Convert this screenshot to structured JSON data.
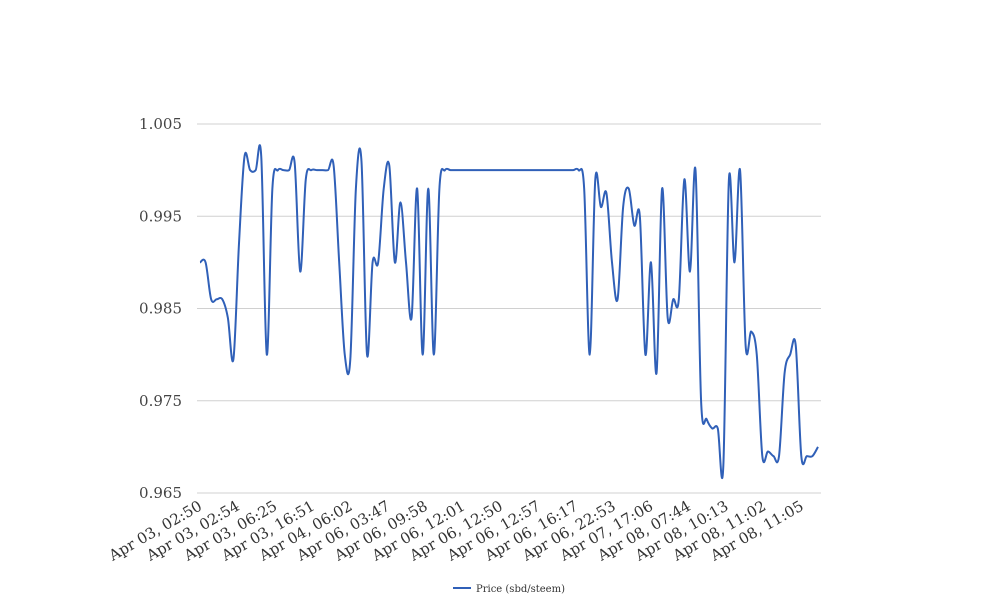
{
  "chart_data": {
    "type": "line",
    "title": "",
    "xlabel": "",
    "ylabel": "",
    "ylim": [
      0.965,
      1.005
    ],
    "y_ticks": [
      "0.965",
      "0.975",
      "0.985",
      "0.995",
      "1.005"
    ],
    "y_tick_values": [
      0.965,
      0.975,
      0.985,
      0.995,
      1.005
    ],
    "x_tick_labels": [
      "Apr 03, 02:50",
      "Apr 03, 02:54",
      "Apr 03, 06:25",
      "Apr 03, 16:51",
      "Apr 04, 06:02",
      "Apr 06, 03:47",
      "Apr 06, 09:58",
      "Apr 06, 12:01",
      "Apr 06, 12:50",
      "Apr 06, 12:57",
      "Apr 06, 16:17",
      "Apr 06, 22:53",
      "Apr 07, 17:06",
      "Apr 08, 07:44",
      "Apr 08, 10:13",
      "Apr 08, 11:02",
      "Apr 08, 11:05"
    ],
    "grid": true,
    "legend_position": "bottom",
    "series": [
      {
        "name": "Price (sbd/steem)",
        "color": "#3060b8",
        "values": [
          0.99,
          0.99,
          0.986,
          0.986,
          0.986,
          0.984,
          0.9795,
          0.992,
          1.0015,
          1.0,
          1.0,
          1.0015,
          0.98,
          0.998,
          1.0,
          1.0,
          1.0,
          1.0008,
          0.989,
          0.999,
          1.0,
          1.0,
          1.0,
          1.0,
          1.0005,
          0.99,
          0.98,
          0.9795,
          0.998,
          1.001,
          0.98,
          0.99,
          0.99,
          0.998,
          1.0005,
          0.99,
          0.9965,
          0.99,
          0.984,
          0.998,
          0.98,
          0.998,
          0.98,
          0.998,
          1.0,
          1.0,
          1.0,
          1.0,
          1.0,
          1.0,
          1.0,
          1.0,
          1.0,
          1.0,
          1.0,
          1.0,
          1.0,
          1.0,
          1.0,
          1.0,
          1.0,
          1.0,
          1.0,
          1.0,
          1.0,
          1.0,
          1.0,
          1.0,
          1.0,
          0.998,
          0.98,
          0.999,
          0.996,
          0.9975,
          0.99,
          0.986,
          0.996,
          0.998,
          0.994,
          0.995,
          0.98,
          0.99,
          0.978,
          0.998,
          0.984,
          0.986,
          0.986,
          0.999,
          0.989,
          1.0,
          0.975,
          0.973,
          0.972,
          0.972,
          0.968,
          0.999,
          0.99,
          1.0,
          0.981,
          0.9825,
          0.98,
          0.969,
          0.9695,
          0.969,
          0.969,
          0.978,
          0.98,
          0.981,
          0.969,
          0.969,
          0.969,
          0.97
        ]
      }
    ]
  }
}
